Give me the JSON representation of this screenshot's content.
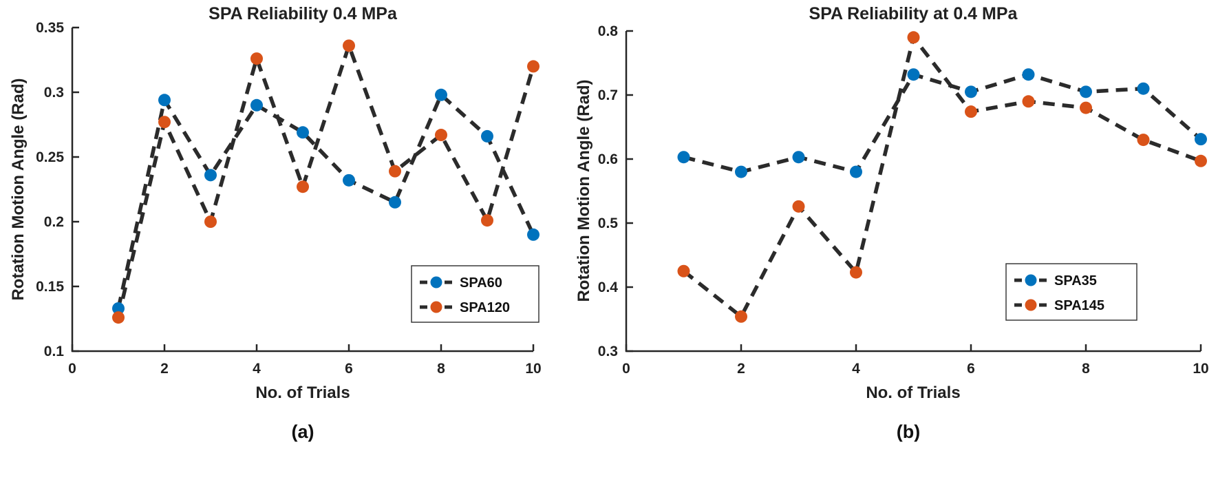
{
  "figure": {
    "background": "#ffffff",
    "axis_color": "#262626",
    "dash_line_color": "#2b2b2b",
    "text_color": "#212121"
  },
  "chart_data": [
    {
      "type": "line",
      "title": "SPA Reliability 0.4 MPa",
      "xlabel": "No. of Trials",
      "ylabel": "Rotation Motion Angle (Rad)",
      "panel_label": "(a)",
      "xlim": [
        0,
        10
      ],
      "ylim": [
        0.1,
        0.35
      ],
      "xticks": [
        "0",
        "2",
        "4",
        "6",
        "8",
        "10"
      ],
      "yticks": [
        "0.1",
        "0.15",
        "0.2",
        "0.25",
        "0.3",
        "0.35"
      ],
      "grid": false,
      "line_style": "dashed",
      "legend_position": "inside-lower-right",
      "x": [
        1,
        2,
        3,
        4,
        5,
        6,
        7,
        8,
        9,
        10
      ],
      "series": [
        {
          "name": "SPA60",
          "marker_color": "#0072BD",
          "values": [
            0.133,
            0.294,
            0.236,
            0.29,
            0.269,
            0.232,
            0.215,
            0.298,
            0.266,
            0.19
          ]
        },
        {
          "name": "SPA120",
          "marker_color": "#D95319",
          "values": [
            0.126,
            0.277,
            0.2,
            0.326,
            0.227,
            0.336,
            0.239,
            0.267,
            0.201,
            0.32
          ]
        }
      ]
    },
    {
      "type": "line",
      "title": "SPA Reliability at 0.4 MPa",
      "xlabel": "No. of Trials",
      "ylabel": "Rotation Motion Angle (Rad)",
      "panel_label": "(b)",
      "xlim": [
        0,
        10
      ],
      "ylim": [
        0.3,
        0.8
      ],
      "xticks": [
        "0",
        "2",
        "4",
        "6",
        "8",
        "10"
      ],
      "yticks": [
        "0.3",
        "0.4",
        "0.5",
        "0.6",
        "0.7",
        "0.8"
      ],
      "grid": false,
      "line_style": "dashed",
      "legend_position": "inside-right",
      "x": [
        1,
        2,
        3,
        4,
        5,
        6,
        7,
        8,
        9,
        10
      ],
      "series": [
        {
          "name": "SPA35",
          "marker_color": "#0072BD",
          "values": [
            0.603,
            0.58,
            0.603,
            0.58,
            0.732,
            0.705,
            0.732,
            0.705,
            0.71,
            0.631
          ]
        },
        {
          "name": "SPA145",
          "marker_color": "#D95319",
          "values": [
            0.425,
            0.354,
            0.526,
            0.423,
            0.79,
            0.674,
            0.69,
            0.68,
            0.63,
            0.597
          ]
        }
      ]
    }
  ]
}
